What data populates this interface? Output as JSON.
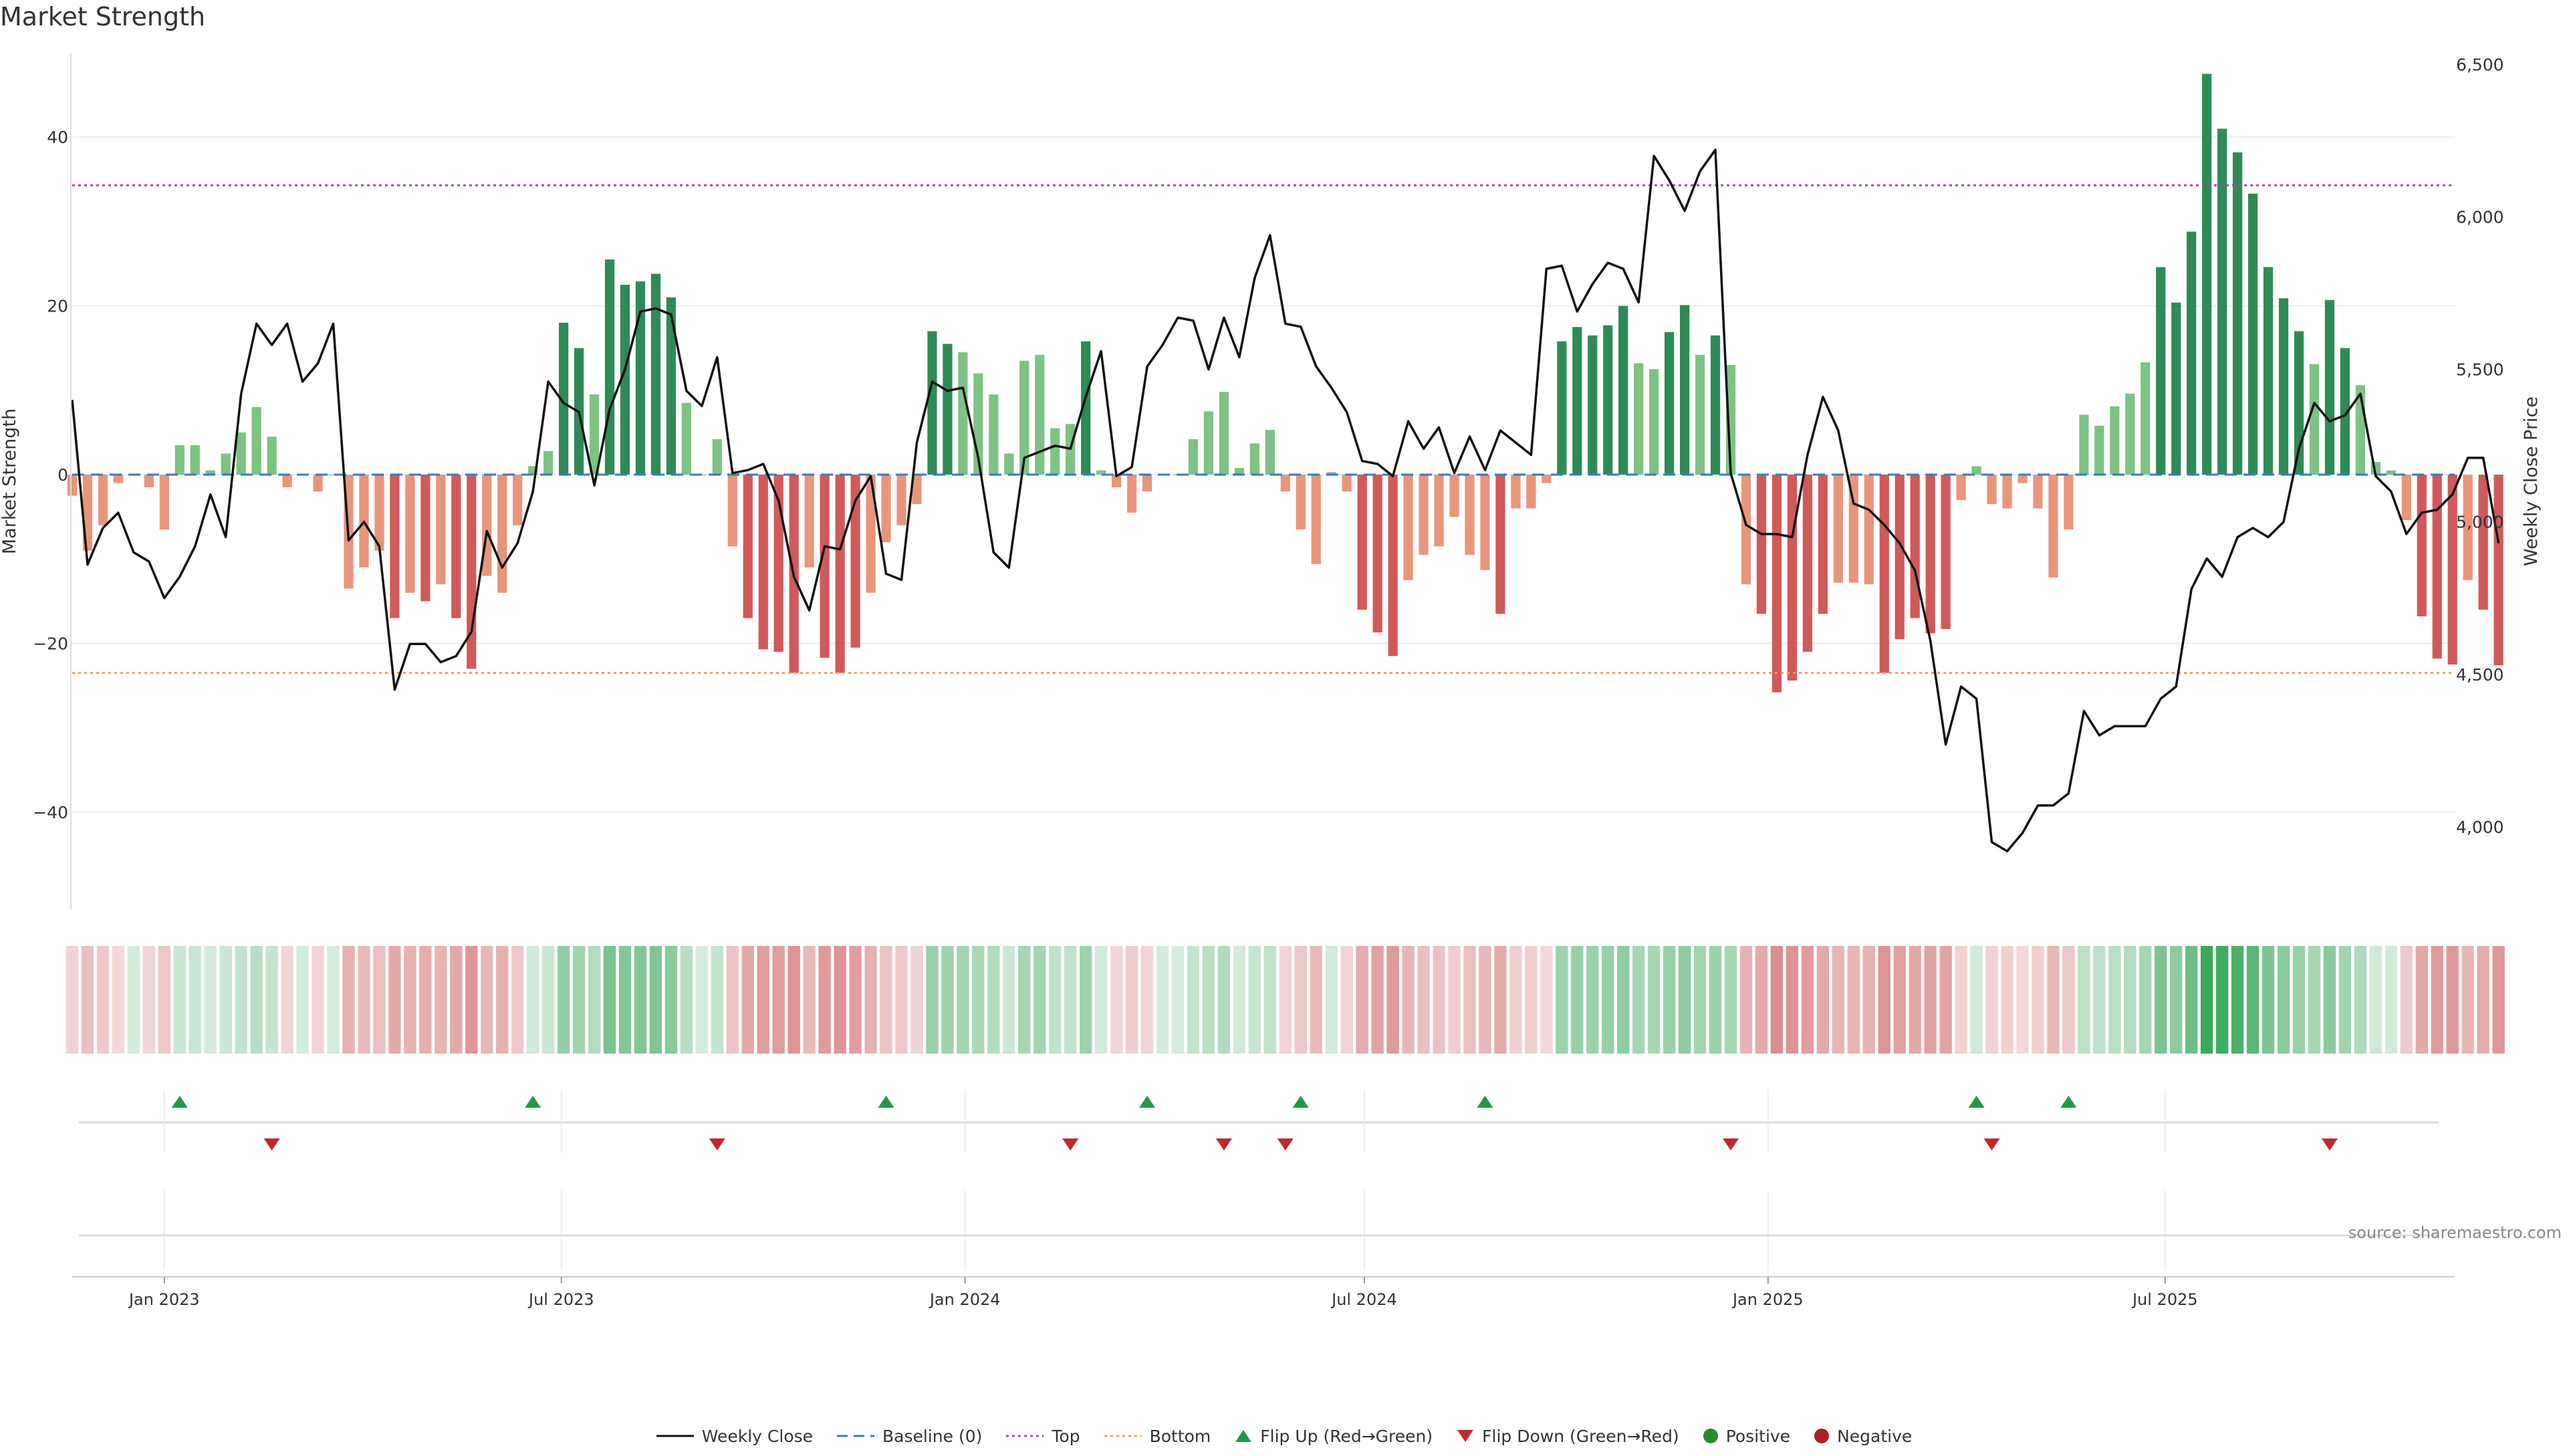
{
  "chart_data": {
    "type": "bar+line",
    "title": "Market Strength",
    "ylabel_left": "Market Strength",
    "ylabel_right": "Weekly Close Price",
    "source": "source: sharemaestro.com",
    "left_ylim": [
      -51.5,
      51.5
    ],
    "left_yticks": [
      40,
      20,
      0,
      -20,
      -40
    ],
    "right_ylim": [
      3730,
      6580
    ],
    "right_yticks": [
      6500,
      6000,
      5500,
      5000,
      4500,
      4000
    ],
    "right_ytick_labels": [
      "6,500",
      "6,000",
      "5,500",
      "5,000",
      "4,500",
      "4,000"
    ],
    "x_start": "2022-11-20",
    "x_end": "2025-11-10",
    "x_ticks": [
      {
        "date": "2023-01-01",
        "label": "Jan 2023"
      },
      {
        "date": "2023-07-01",
        "label": "Jul 2023"
      },
      {
        "date": "2024-01-01",
        "label": "Jan 2024"
      },
      {
        "date": "2024-07-01",
        "label": "Jul 2024"
      },
      {
        "date": "2025-01-01",
        "label": "Jan 2025"
      },
      {
        "date": "2025-07-01",
        "label": "Jul 2025"
      }
    ],
    "top_line": 34.3,
    "bottom_line": -23.5,
    "baseline": 0,
    "strength": [
      -2.5,
      -9,
      -6,
      -1,
      0,
      -1.5,
      -6.5,
      3.5,
      3.5,
      0.5,
      2.5,
      5,
      8,
      4.5,
      -1.5,
      0,
      -2,
      0,
      -13.5,
      -11,
      -9,
      -17,
      -14,
      -15,
      -13,
      -17,
      -23,
      -12,
      -14,
      -6,
      1,
      2.8,
      18,
      15,
      9.5,
      25.5,
      22.5,
      22.9,
      23.8,
      21,
      8.5,
      0,
      4.2,
      -8.5,
      -17,
      -20.7,
      -21,
      -23.5,
      -11,
      -21.7,
      -23.5,
      -20.5,
      -14,
      -8,
      -6,
      -3.5,
      17,
      15.5,
      14.5,
      12,
      9.5,
      2.5,
      13.5,
      14.2,
      5.5,
      6,
      15.8,
      0.5,
      -1.5,
      -4.5,
      -2,
      0,
      0,
      4.2,
      7.5,
      9.8,
      0.8,
      3.7,
      5.3,
      -2,
      -6.5,
      -10.6,
      0.3,
      -2,
      -16,
      -18.7,
      -21.5,
      -12.5,
      -9.5,
      -8.5,
      -5,
      -9.5,
      -11.3,
      -16.5,
      -4,
      -4,
      -1,
      15.8,
      17.5,
      16.5,
      17.7,
      20,
      13.2,
      12.5,
      16.9,
      20.1,
      14.2,
      16.5,
      13,
      -13,
      -16.5,
      -25.8,
      -24.4,
      -21,
      -16.5,
      -12.8,
      -12.8,
      -13,
      -23.5,
      -19.5,
      -17,
      -18.8,
      -18.3,
      -3,
      1,
      -3.5,
      -4,
      -1,
      -4,
      -12.2,
      -6.5,
      7.1,
      5.8,
      8.1,
      9.6,
      13.3,
      24.6,
      20.4,
      28.8,
      47.5,
      41,
      38.2,
      33.3,
      24.6,
      20.9,
      17,
      13.1,
      20.7,
      15,
      10.6,
      1.5,
      0.5,
      -5.4,
      -16.8,
      -21.8,
      -22.5,
      -12.5,
      -16,
      -22.6
    ],
    "price": [
      5400,
      4860,
      4980,
      5030,
      4900,
      4870,
      4750,
      4820,
      4920,
      5090,
      4950,
      5420,
      5650,
      5580,
      5650,
      5460,
      5520,
      5650,
      4940,
      5000,
      4920,
      4450,
      4600,
      4600,
      4540,
      4560,
      4640,
      4970,
      4850,
      4930,
      5100,
      5460,
      5390,
      5360,
      5120,
      5370,
      5500,
      5690,
      5700,
      5680,
      5430,
      5380,
      5540,
      5160,
      5170,
      5190,
      5070,
      4820,
      4710,
      4920,
      4910,
      5070,
      5150,
      4830,
      4810,
      5260,
      5460,
      5430,
      5440,
      5210,
      4900,
      4850,
      5210,
      5230,
      5250,
      5240,
      5410,
      5560,
      5150,
      5180,
      5510,
      5580,
      5670,
      5660,
      5500,
      5670,
      5540,
      5800,
      5940,
      5650,
      5640,
      5510,
      5440,
      5360,
      5200,
      5190,
      5150,
      5330,
      5240,
      5310,
      5160,
      5280,
      5170,
      5300,
      5260,
      5220,
      5830,
      5840,
      5690,
      5780,
      5850,
      5830,
      5720,
      6200,
      6120,
      6020,
      6150,
      6220,
      5160,
      4990,
      4960,
      4960,
      4950,
      5220,
      5410,
      5300,
      5060,
      5040,
      4990,
      4930,
      4840,
      4610,
      4270,
      4460,
      4420,
      3950,
      3920,
      3980,
      4070,
      4070,
      4110,
      4380,
      4300,
      4330,
      4330,
      4330,
      4420,
      4460,
      4780,
      4880,
      4820,
      4950,
      4980,
      4950,
      5000,
      5240,
      5390,
      5330,
      5350,
      5420,
      5150,
      5100,
      4960,
      5030,
      5040,
      5090,
      5210,
      5210,
      4930
    ],
    "flip_up": [
      "2023-01-08",
      "2023-06-18",
      "2023-11-26",
      "2024-03-24",
      "2024-06-02",
      "2024-08-25",
      "2025-04-06",
      "2025-05-18"
    ],
    "flip_down": [
      "2023-02-19",
      "2023-09-10",
      "2024-02-18",
      "2024-04-28",
      "2024-05-26",
      "2024-12-15",
      "2025-04-13",
      "2025-09-14"
    ],
    "colors": {
      "strong_positive": "#2e8b57",
      "weak_positive": "#7dc383",
      "strong_negative": "#d05a5a",
      "weak_negative": "#e8967a",
      "price_line": "#111111",
      "top_line": "#a64aa6",
      "bottom_line": "#e8a060",
      "baseline": "#3a7ab8",
      "flip_up": "#1f9a4a",
      "flip_down": "#c0282d",
      "positive_dot": "#2a8a2a",
      "negative_dot": "#b02020"
    }
  },
  "legend": {
    "weekly_close": "Weekly Close",
    "baseline": "Baseline (0)",
    "top": "Top",
    "bottom": "Bottom",
    "flip_up": "Flip Up (Red→Green)",
    "flip_down": "Flip Down (Green→Red)",
    "positive": "Positive",
    "negative": "Negative"
  }
}
